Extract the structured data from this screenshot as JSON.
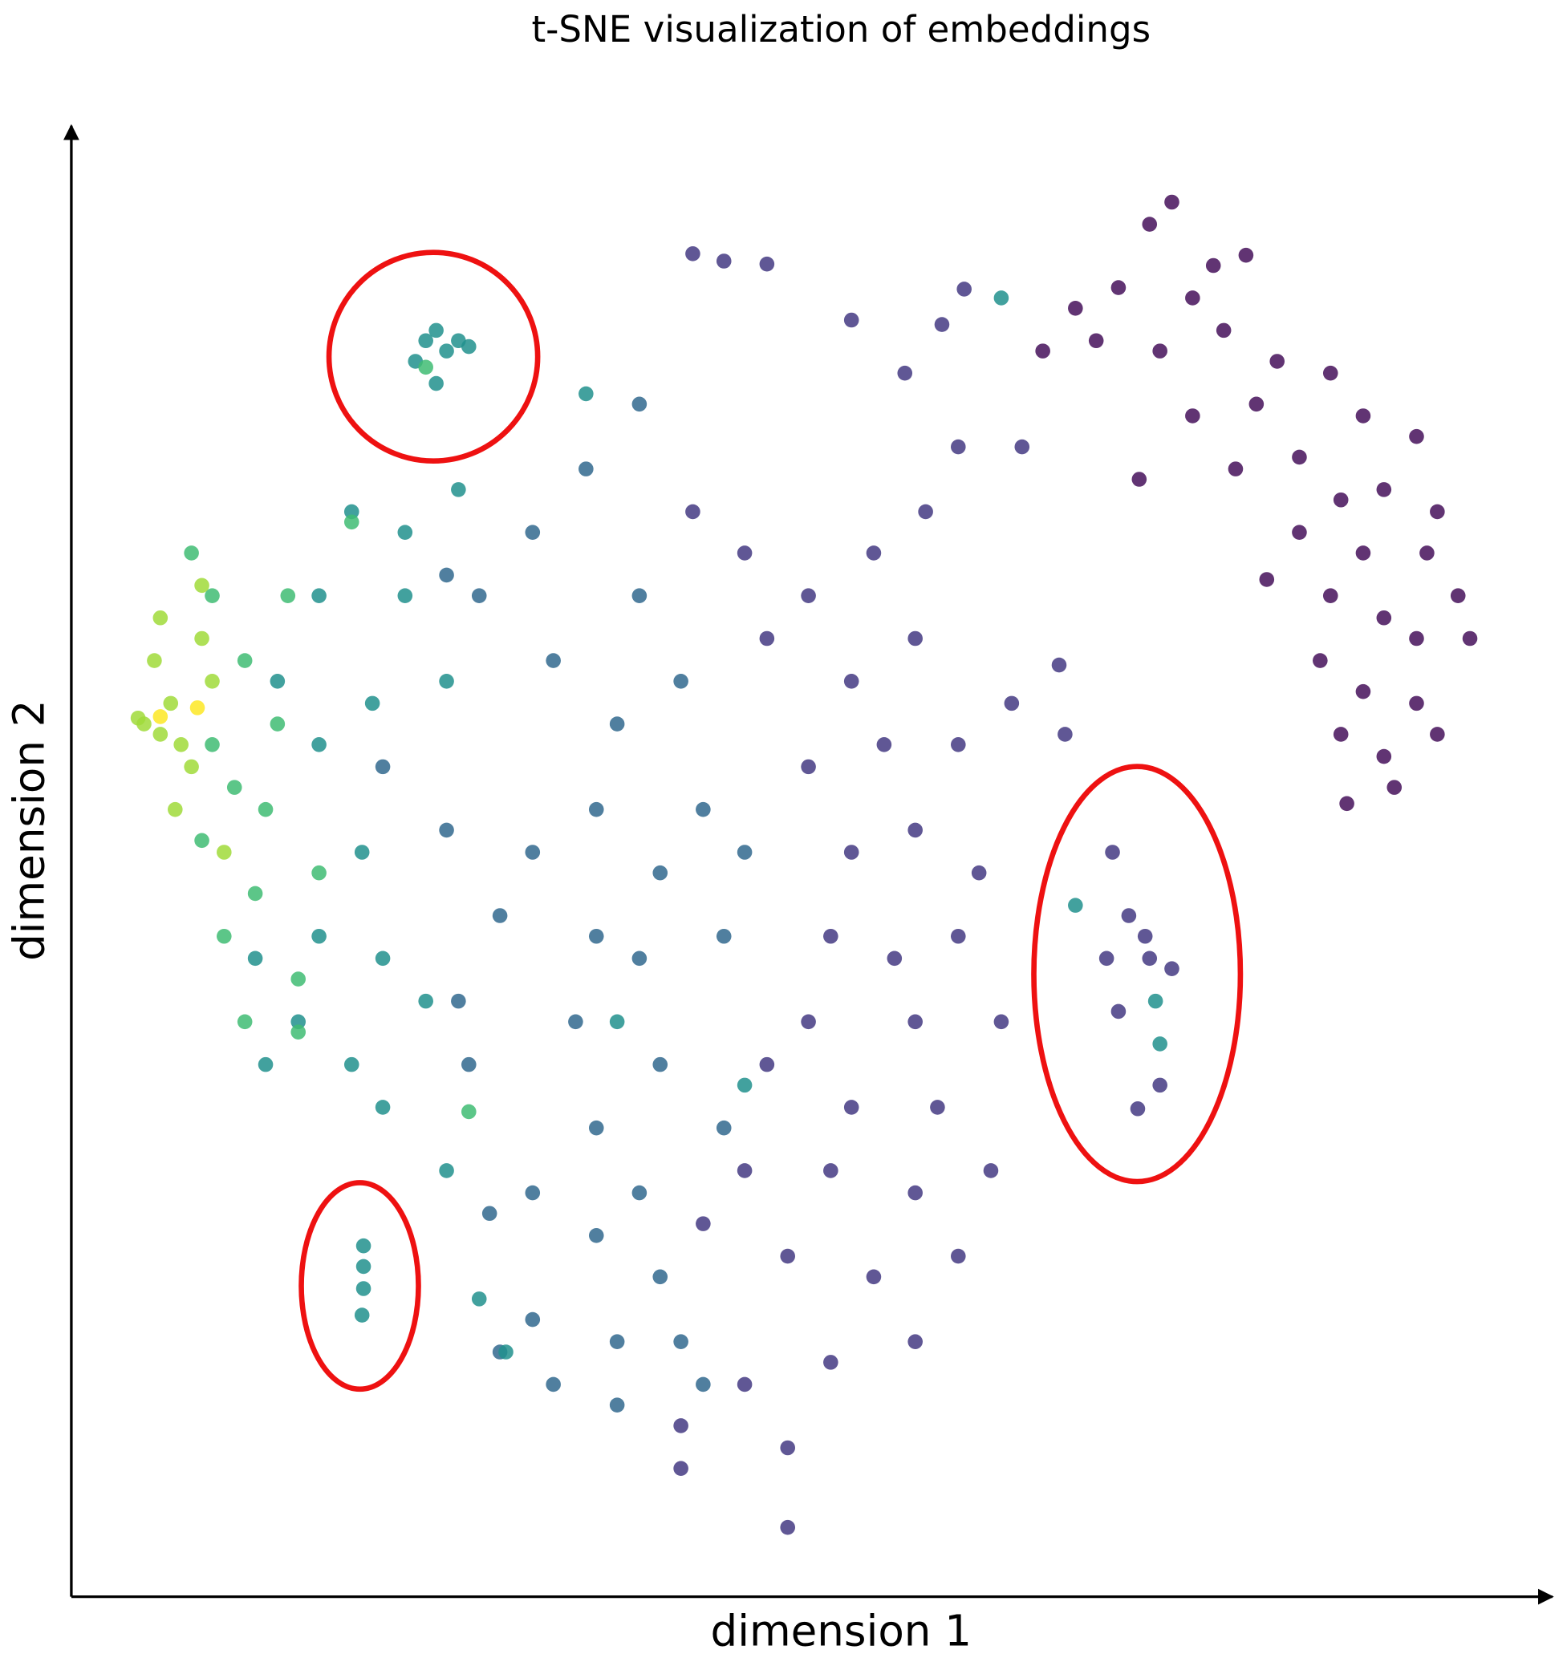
{
  "chart_data": {
    "type": "scatter",
    "title": "t-SNE visualization of embeddings",
    "xlabel": "dimension 1",
    "ylabel": "dimension 2",
    "xlim": [
      0,
      100
    ],
    "ylim": [
      0,
      100
    ],
    "series": [
      {
        "color": "#45115a",
        "x": [
          74.2,
          72.7,
          77.0,
          70.6,
          75.6,
          79.2,
          67.7,
          65.5,
          69.1,
          73.4,
          77.7,
          81.3,
          84.9,
          79.9,
          75.6,
          87.1,
          90.7,
          82.8,
          78.5,
          85.6,
          88.5,
          92.1,
          82.8,
          87.1,
          91.4,
          93.5,
          84.9,
          88.5,
          90.7,
          94.3,
          84.2,
          87.1,
          90.7,
          85.6,
          88.5,
          92.1,
          89.2,
          86.0,
          72.0,
          80.6
        ],
        "y": [
          94.6,
          93.1,
          90.3,
          88.8,
          88.1,
          91.0,
          87.4,
          84.5,
          85.2,
          84.5,
          85.9,
          83.8,
          83.0,
          80.9,
          80.1,
          80.1,
          78.7,
          77.3,
          76.5,
          74.4,
          75.1,
          73.6,
          72.2,
          70.8,
          70.8,
          67.9,
          67.9,
          66.4,
          65.0,
          65.0,
          63.5,
          61.4,
          60.6,
          58.5,
          57.0,
          58.5,
          54.9,
          53.8,
          75.8,
          69.0
        ]
      },
      {
        "color": "#443a83",
        "x": [
          52.6,
          56.2,
          59.8,
          64.1,
          57.6,
          54.1,
          49.7,
          45.4,
          41.9,
          46.9,
          52.6,
          56.9,
          59.8,
          63.4,
          54.8,
          49.7,
          52.6,
          56.9,
          61.2,
          51.2,
          55.5,
          59.8,
          62.7,
          56.9,
          49.7,
          46.9,
          52.6,
          58.4,
          62.0,
          56.9,
          51.2,
          45.4,
          42.6,
          48.3,
          54.1,
          59.8,
          56.9,
          51.2,
          45.4,
          41.1,
          48.3,
          41.1,
          48.3,
          70.2,
          71.3,
          72.7,
          74.2,
          70.6,
          73.4,
          71.9,
          72.4,
          69.8,
          67.0,
          66.6,
          60.2,
          58.7,
          44.0,
          46.9,
          41.9
        ],
        "y": [
          86.6,
          83.0,
          78.0,
          78.0,
          73.6,
          70.8,
          67.9,
          70.8,
          73.6,
          65.0,
          62.1,
          65.0,
          57.8,
          60.6,
          57.8,
          56.3,
          50.5,
          52.0,
          49.1,
          44.8,
          43.3,
          44.8,
          39.0,
          39.0,
          39.0,
          36.1,
          33.2,
          33.2,
          28.9,
          27.4,
          28.9,
          28.9,
          25.3,
          23.1,
          21.7,
          23.1,
          17.3,
          15.9,
          14.4,
          11.6,
          10.1,
          8.7,
          4.7,
          50.5,
          46.2,
          43.3,
          42.6,
          39.7,
          34.7,
          33.1,
          44.8,
          43.3,
          58.5,
          63.2,
          88.7,
          86.3,
          90.6,
          90.4,
          91.1
        ]
      },
      {
        "color": "#31688e",
        "x": [
          38.3,
          34.7,
          31.1,
          27.5,
          32.5,
          36.8,
          41.1,
          38.3,
          35.4,
          31.1,
          39.7,
          44.0,
          38.3,
          34.0,
          39.7,
          44.0,
          35.4,
          31.1,
          35.4,
          39.7,
          31.1,
          36.8,
          32.5,
          28.9,
          28.2,
          26.8,
          26.1,
          28.9,
          25.3,
          21.0,
          42.6,
          45.4,
          25.3,
          35.4,
          38.3,
          41.1,
          42.6,
          36.8
        ],
        "y": [
          80.9,
          76.5,
          72.2,
          67.9,
          63.5,
          59.2,
          62.1,
          67.9,
          53.4,
          50.5,
          49.1,
          44.8,
          43.3,
          39.0,
          36.1,
          31.8,
          31.8,
          27.4,
          24.5,
          21.7,
          18.8,
          17.3,
          14.4,
          16.6,
          26.0,
          36.1,
          40.4,
          46.2,
          52.0,
          56.3,
          53.4,
          50.5,
          69.3,
          44.8,
          27.4,
          17.3,
          14.4,
          13.0
        ]
      },
      {
        "color": "#21908d",
        "x": [
          23.9,
          24.6,
          23.2,
          25.3,
          26.1,
          24.6,
          26.8,
          16.7,
          13.9,
          16.7,
          19.6,
          16.7,
          21.0,
          23.9,
          15.3,
          18.9,
          13.1,
          21.0,
          25.3,
          27.5,
          29.3,
          36.8,
          45.4,
          73.4,
          73.1,
          19.7,
          19.7,
          19.7,
          19.6,
          22.5,
          20.3,
          25.3,
          12.4,
          18.9,
          22.5,
          26.1,
          34.7,
          62.7,
          67.7
        ],
        "y": [
          85.2,
          85.9,
          83.8,
          84.5,
          85.2,
          82.3,
          84.8,
          67.9,
          62.1,
          57.8,
          50.5,
          44.8,
          43.3,
          40.4,
          39.0,
          36.1,
          36.1,
          33.2,
          28.9,
          20.2,
          16.6,
          39.0,
          34.7,
          37.5,
          40.4,
          23.8,
          22.4,
          20.9,
          19.1,
          67.9,
          60.6,
          62.1,
          43.3,
          73.6,
          72.2,
          75.1,
          81.6,
          88.1,
          46.9
        ]
      },
      {
        "color": "#3fbc73",
        "x": [
          8.1,
          9.5,
          11.7,
          13.9,
          11.0,
          8.8,
          12.4,
          10.3,
          15.3,
          11.7,
          15.3,
          16.7,
          13.1,
          18.9,
          23.9,
          26.8,
          9.5,
          14.6
        ],
        "y": [
          70.8,
          67.9,
          63.5,
          59.2,
          54.9,
          51.3,
          47.7,
          44.8,
          41.9,
          39.0,
          38.3,
          49.1,
          53.4,
          72.9,
          83.4,
          32.9,
          57.8,
          67.9
        ]
      },
      {
        "color": "#a0da39",
        "x": [
          4.9,
          6.0,
          6.7,
          7.4,
          5.6,
          8.8,
          6.0,
          8.1,
          9.5,
          7.0,
          8.8,
          4.5,
          10.3
        ],
        "y": [
          59.2,
          58.5,
          60.6,
          57.8,
          63.5,
          68.6,
          66.4,
          56.3,
          62.1,
          53.4,
          65.0,
          59.6,
          50.5
        ]
      },
      {
        "color": "#fde725",
        "x": [
          6.0,
          8.5
        ],
        "y": [
          59.7,
          60.3
        ]
      }
    ]
  }
}
